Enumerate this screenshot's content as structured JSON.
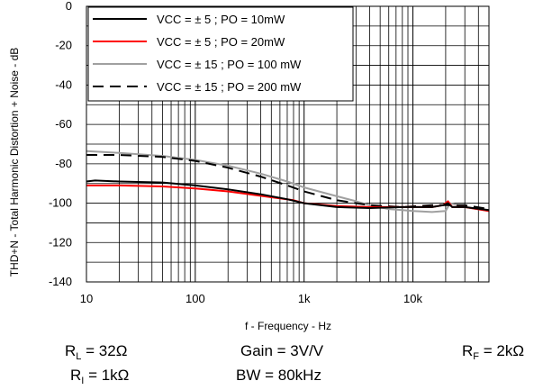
{
  "chart_data": {
    "type": "line",
    "title": "",
    "xlabel": "f - Frequency - Hz",
    "ylabel": "THD+N - Total Harmonic Distortion + Noise - dB",
    "x_scale": "log",
    "xlim": [
      10,
      50000
    ],
    "ylim": [
      -140,
      0
    ],
    "x_ticks": [
      10,
      100,
      1000,
      10000
    ],
    "x_tick_labels": [
      "10",
      "100",
      "1k",
      "10k"
    ],
    "y_ticks": [
      0,
      -20,
      -40,
      -60,
      -80,
      -100,
      -120,
      -140
    ],
    "y_tick_labels": [
      "0",
      "-20",
      "-40",
      "-60",
      "-80",
      "-100",
      "-120",
      "-140"
    ],
    "grid": true,
    "legend_position": "top-left",
    "series": [
      {
        "name": "VCC = ± 5 ; PO = 10mW",
        "color": "#000000",
        "dash": "solid",
        "x": [
          10,
          12,
          20,
          50,
          100,
          200,
          400,
          700,
          1000,
          2000,
          4000,
          8000,
          15000,
          19000,
          21000,
          23000,
          30000,
          50000
        ],
        "y": [
          -89,
          -88.5,
          -89,
          -89.5,
          -91,
          -93,
          -95.5,
          -98,
          -100,
          -102,
          -102.5,
          -102,
          -102,
          -101,
          -100,
          -102,
          -102,
          -103.5
        ]
      },
      {
        "name": "VCC = ± 5 ; PO = 20mW",
        "color": "#ff0000",
        "dash": "solid",
        "x": [
          10,
          20,
          50,
          100,
          200,
          500,
          800,
          1000,
          2000,
          4000,
          8000,
          15000,
          19000,
          21000,
          23000,
          30000,
          50000
        ],
        "y": [
          -91,
          -91,
          -91.5,
          -92.5,
          -94,
          -97,
          -98.5,
          -100,
          -101.5,
          -102,
          -102,
          -102,
          -101,
          -99,
          -102,
          -102,
          -104
        ]
      },
      {
        "name": "VCC = ± 15 ; PO = 100 mW",
        "color": "#a0a0a0",
        "dash": "solid",
        "x": [
          10,
          20,
          50,
          100,
          200,
          400,
          700,
          1000,
          2000,
          3000,
          4000,
          6000,
          8000,
          10000,
          15000,
          20000,
          22000,
          30000,
          50000
        ],
        "y": [
          -73.5,
          -74.5,
          -76,
          -78,
          -81,
          -85,
          -89,
          -92,
          -96.5,
          -99,
          -101,
          -103,
          -103.5,
          -104,
          -104.5,
          -104,
          -100,
          -102,
          -104
        ]
      },
      {
        "name": "VCC = ± 15 ; PO = 200 mW",
        "color": "#000000",
        "dash": "dashed",
        "x": [
          10,
          20,
          50,
          100,
          200,
          400,
          700,
          1000,
          2000,
          4000,
          8000,
          15000,
          20000,
          30000,
          50000
        ],
        "y": [
          -75.5,
          -75.5,
          -76.5,
          -78.5,
          -82,
          -86.5,
          -91,
          -94,
          -98.5,
          -101,
          -102,
          -101,
          -101,
          -101,
          -103
        ]
      }
    ]
  },
  "conditions": {
    "rl_main": "R",
    "rl_sub": "L",
    "rl_val": " = 32Ω",
    "gain": "Gain = 3V/V",
    "rf_main": "R",
    "rf_sub": "F",
    "rf_val": " = 2kΩ",
    "ri_main": "R",
    "ri_sub": "I",
    "ri_val": " = 1kΩ",
    "bw": "BW = 80kHz"
  }
}
